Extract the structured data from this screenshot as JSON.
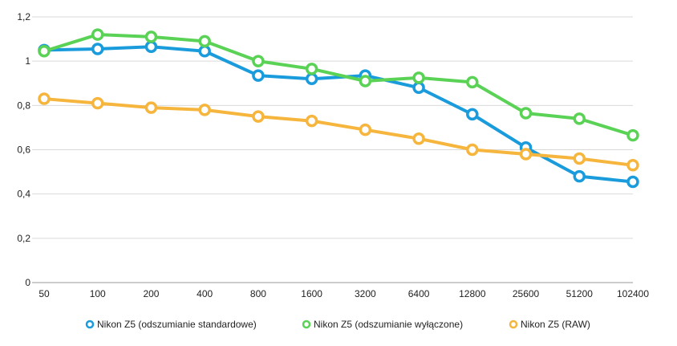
{
  "chart_data": {
    "type": "line",
    "title": "",
    "xlabel": "",
    "ylabel": "",
    "categories": [
      "50",
      "100",
      "200",
      "400",
      "800",
      "1600",
      "3200",
      "6400",
      "12800",
      "25600",
      "51200",
      "102400"
    ],
    "ylim": [
      0,
      1.2
    ],
    "yticks": [
      "0",
      "0,2",
      "0,4",
      "0,6",
      "0,8",
      "1",
      "1,2"
    ],
    "grid": true,
    "legend_position": "bottom",
    "series": [
      {
        "name": "Nikon Z5 (odszumianie standardowe)",
        "color": "#1a9bdc",
        "values": [
          1.05,
          1.055,
          1.065,
          1.045,
          0.935,
          0.92,
          0.935,
          0.88,
          0.76,
          0.61,
          0.48,
          0.455
        ]
      },
      {
        "name": "Nikon Z5 (odszumianie wyłączone)",
        "color": "#5ad255",
        "values": [
          1.045,
          1.12,
          1.11,
          1.09,
          1.0,
          0.965,
          0.91,
          0.925,
          0.905,
          0.765,
          0.74,
          0.665
        ]
      },
      {
        "name": "Nikon Z5 (RAW)",
        "color": "#f6b53c",
        "values": [
          0.83,
          0.81,
          0.79,
          0.78,
          0.75,
          0.73,
          0.69,
          0.65,
          0.6,
          0.58,
          0.56,
          0.53
        ]
      }
    ]
  }
}
